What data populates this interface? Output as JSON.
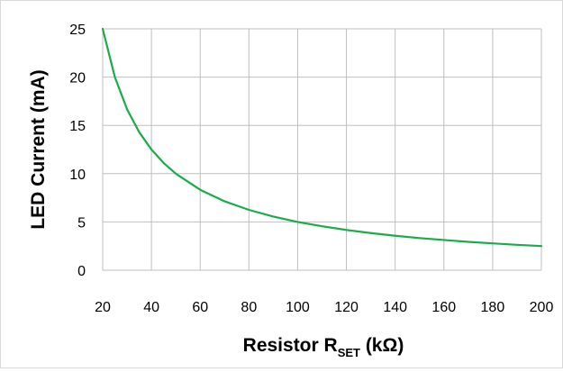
{
  "chart_data": {
    "type": "line",
    "title": "",
    "xlabel": {
      "main": "Resistor R",
      "sub": "SET",
      "unit": " (kΩ)"
    },
    "ylabel": "LED Current (mA)",
    "xlim": [
      20,
      200
    ],
    "ylim": [
      0,
      25
    ],
    "x_ticks": [
      "20",
      "40",
      "60",
      "80",
      "100",
      "120",
      "140",
      "160",
      "180",
      "200"
    ],
    "y_ticks": [
      "0",
      "5",
      "10",
      "15",
      "20",
      "25"
    ],
    "grid": true,
    "legend": "none",
    "series": [
      {
        "color": "#1aab4b",
        "x": [
          20,
          25,
          30,
          35,
          40,
          45,
          50,
          60,
          70,
          80,
          90,
          100,
          110,
          120,
          130,
          140,
          150,
          160,
          170,
          180,
          190,
          200
        ],
        "y": [
          25,
          20,
          16.67,
          14.29,
          12.5,
          11.11,
          10,
          8.33,
          7.14,
          6.25,
          5.56,
          5,
          4.55,
          4.17,
          3.85,
          3.57,
          3.33,
          3.13,
          2.94,
          2.78,
          2.63,
          2.5
        ]
      }
    ]
  },
  "colors": {
    "grid": "#bfbfbf",
    "line": "#1aab4b",
    "frame": "#d9d9d9"
  }
}
